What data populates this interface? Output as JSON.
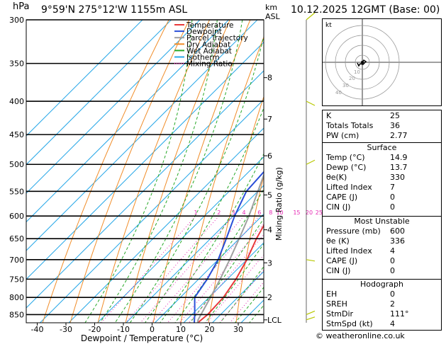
{
  "header": {
    "hpa_label": "hPa",
    "location": "9°59'N  275°12'W  1155m  ASL",
    "km_label": "km",
    "asl_label": "ASL",
    "datetime": "10.12.2025  12GMT  (Base: 00)"
  },
  "copyright": "© weatheronline.co.uk",
  "hodograph": {
    "unit_label": "kt",
    "ring_labels": [
      "10",
      "20",
      "30",
      "40"
    ]
  },
  "indices": {
    "rows": [
      {
        "label": "K",
        "value": "25"
      },
      {
        "label": "Totals Totals",
        "value": "36"
      },
      {
        "label": "PW (cm)",
        "value": "2.77"
      }
    ]
  },
  "surface": {
    "title": "Surface",
    "rows": [
      {
        "label": "Temp (°C)",
        "value": "14.9"
      },
      {
        "label": "Dewp (°C)",
        "value": "13.7"
      },
      {
        "label": "θe(K)",
        "value": "330"
      },
      {
        "label": "Lifted Index",
        "value": "7"
      },
      {
        "label": "CAPE (J)",
        "value": "0"
      },
      {
        "label": "CIN (J)",
        "value": "0"
      }
    ]
  },
  "most_unstable": {
    "title": "Most Unstable",
    "rows": [
      {
        "label": "Pressure (mb)",
        "value": "600"
      },
      {
        "label": "θe (K)",
        "value": "336"
      },
      {
        "label": "Lifted Index",
        "value": "4"
      },
      {
        "label": "CAPE (J)",
        "value": "0"
      },
      {
        "label": "CIN (J)",
        "value": "0"
      }
    ]
  },
  "hodograph_table": {
    "title": "Hodograph",
    "rows": [
      {
        "label": "EH",
        "value": "0"
      },
      {
        "label": "SREH",
        "value": "2"
      },
      {
        "label": "StmDir",
        "value": "111°"
      },
      {
        "label": "StmSpd (kt)",
        "value": "4"
      }
    ]
  },
  "chart_data": {
    "type": "line",
    "xlabel": "Dewpoint / Temperature (°C)",
    "ylabel": "hPa",
    "right_axis_label": "Mixing Ratio (g/kg)",
    "pressure_levels": [
      300,
      350,
      400,
      450,
      500,
      550,
      600,
      650,
      700,
      750,
      800,
      850
    ],
    "temperature_ticks": [
      -40,
      -30,
      -20,
      -10,
      0,
      10,
      20,
      30
    ],
    "height_ticks_km": [
      {
        "km": "8",
        "p": 368
      },
      {
        "km": "7",
        "p": 426
      },
      {
        "km": "6",
        "p": 485
      },
      {
        "km": "5",
        "p": 557
      },
      {
        "km": "4",
        "p": 630
      },
      {
        "km": "3",
        "p": 708
      },
      {
        "km": "2",
        "p": 800
      },
      {
        "km": "LCL",
        "p": 866
      }
    ],
    "mixing_ratio_labels": [
      "1",
      "2",
      "3",
      "4",
      "6",
      "8",
      "10",
      "15",
      "20",
      "25"
    ],
    "xlim": [
      -40,
      35
    ],
    "ylim": [
      300,
      875
    ],
    "legend": [
      "Temperature",
      "Dewpoint",
      "Parcel Trajectory",
      "Dry Adiabat",
      "Wet Adiabat",
      "Isotherm",
      "Mixing Ratio"
    ],
    "legend_placement": "top-left",
    "colors": {
      "temperature": "#e8383a",
      "dewpoint": "#2a4fd8",
      "parcel": "#a0a0a0",
      "dry_adiabat": "#f08c28",
      "wet_adiabat": "#28a828",
      "isotherm": "#28a8e8",
      "mixing_ratio": "#e628b4"
    },
    "series": [
      {
        "name": "Temperature",
        "points": [
          {
            "p": 875,
            "t": 14.9
          },
          {
            "p": 850,
            "t": 15.5
          },
          {
            "p": 800,
            "t": 15.0
          },
          {
            "p": 750,
            "t": 13.0
          },
          {
            "p": 700,
            "t": 10.0
          },
          {
            "p": 650,
            "t": 6.0
          },
          {
            "p": 600,
            "t": 2.5
          },
          {
            "p": 550,
            "t": -2.0
          },
          {
            "p": 500,
            "t": -6.0
          },
          {
            "p": 450,
            "t": -11.0
          },
          {
            "p": 400,
            "t": -17.5
          },
          {
            "p": 350,
            "t": -26.0
          },
          {
            "p": 300,
            "t": -34.5
          }
        ]
      },
      {
        "name": "Dewpoint",
        "points": [
          {
            "p": 875,
            "t": 13.7
          },
          {
            "p": 850,
            "t": 11.0
          },
          {
            "p": 800,
            "t": 5.0
          },
          {
            "p": 750,
            "t": 3.0
          },
          {
            "p": 700,
            "t": 0.0
          },
          {
            "p": 650,
            "t": -4.5
          },
          {
            "p": 600,
            "t": -9.5
          },
          {
            "p": 550,
            "t": -14.0
          },
          {
            "p": 500,
            "t": -15.0
          },
          {
            "p": 450,
            "t": -25.0
          },
          {
            "p": 400,
            "t": -37.0
          },
          {
            "p": 350,
            "t": -42.0
          },
          {
            "p": 330,
            "t": -51.0
          },
          {
            "p": 300,
            "t": -63.0
          }
        ]
      },
      {
        "name": "Parcel Trajectory",
        "points": [
          {
            "p": 875,
            "t": 14.9
          },
          {
            "p": 866,
            "t": 14.0
          },
          {
            "p": 800,
            "t": 10.5
          },
          {
            "p": 750,
            "t": 7.5
          },
          {
            "p": 700,
            "t": 4.0
          },
          {
            "p": 650,
            "t": 0.0
          },
          {
            "p": 600,
            "t": -4.5
          },
          {
            "p": 550,
            "t": -10.0
          },
          {
            "p": 500,
            "t": -16.0
          },
          {
            "p": 450,
            "t": -23.0
          },
          {
            "p": 400,
            "t": -31.0
          },
          {
            "p": 350,
            "t": -40.0
          },
          {
            "p": 300,
            "t": -50.0
          }
        ]
      }
    ]
  }
}
